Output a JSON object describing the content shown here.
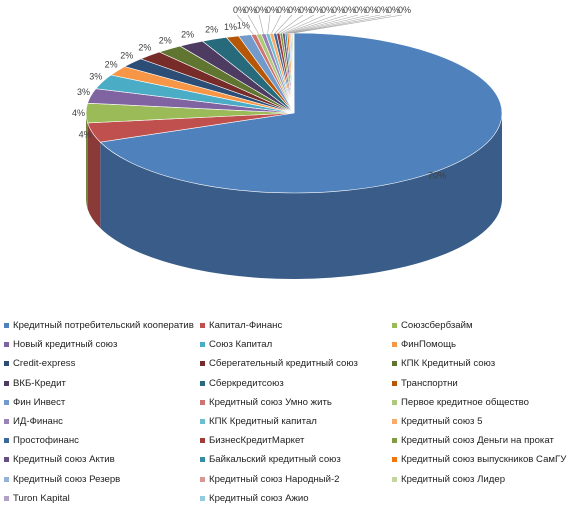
{
  "chart_data": {
    "type": "pie",
    "title": "",
    "series": [
      {
        "name": "Кредитный потребительский кооператив",
        "value": 70,
        "label": "70%",
        "color": "#4f81bd"
      },
      {
        "name": "Капитал-Финанс",
        "value": 4,
        "label": "4%",
        "color": "#c0504d"
      },
      {
        "name": "Союзсбербзайм",
        "value": 4,
        "label": "4%",
        "color": "#9bbb59"
      },
      {
        "name": "Новый кредитный союз",
        "value": 3,
        "label": "3%",
        "color": "#8064a2"
      },
      {
        "name": "Союз Капитал",
        "value": 3,
        "label": "3%",
        "color": "#4bacc6"
      },
      {
        "name": "ФинПомощь",
        "value": 2,
        "label": "2%",
        "color": "#f79646"
      },
      {
        "name": "Credit-express",
        "value": 2,
        "label": "2%",
        "color": "#2c4d75"
      },
      {
        "name": "Сберегательный кредитный союз",
        "value": 2,
        "label": "2%",
        "color": "#772c2a"
      },
      {
        "name": "КПК Кредитный союз",
        "value": 2,
        "label": "2%",
        "color": "#5f7530"
      },
      {
        "name": "ВКБ-Кредит",
        "value": 2,
        "label": "2%",
        "color": "#4d3b62"
      },
      {
        "name": "Сберкредитсоюз",
        "value": 2,
        "label": "2%",
        "color": "#276a7c"
      },
      {
        "name": "Транспортни",
        "value": 1,
        "label": "1%",
        "color": "#b65708"
      },
      {
        "name": "Фин Инвест",
        "value": 1,
        "label": "1%",
        "color": "#729aca"
      },
      {
        "name": "Кредитный союз Умно жить",
        "value": 0.4,
        "label": "0%",
        "color": "#cd7371"
      },
      {
        "name": "Первое кредитное общество",
        "value": 0.4,
        "label": "0%",
        "color": "#afc97a"
      },
      {
        "name": "ИД-Финанс",
        "value": 0.35,
        "label": "0%",
        "color": "#9983b5"
      },
      {
        "name": "КПК Кредитный капитал",
        "value": 0.3,
        "label": "0%",
        "color": "#6fbdd1"
      },
      {
        "name": "Кредитный союз 5",
        "value": 0.3,
        "label": "0%",
        "color": "#f9ab6b"
      },
      {
        "name": "Простофинанс",
        "value": 0.25,
        "label": "0%",
        "color": "#3a679c"
      },
      {
        "name": "БизнесКредитМаркет",
        "value": 0.25,
        "label": "0%",
        "color": "#9f3b38"
      },
      {
        "name": "Кредитный союз Деньги на прокат",
        "value": 0.2,
        "label": "0%",
        "color": "#7f9c40"
      },
      {
        "name": "Кредитный союз Актив",
        "value": 0.2,
        "label": "0%",
        "color": "#664f83"
      },
      {
        "name": "Байкальский кредитный союз",
        "value": 0.15,
        "label": "0%",
        "color": "#358ea6"
      },
      {
        "name": "Кредитный союз выпускников СамГУ",
        "value": 0.15,
        "label": "0%",
        "color": "#f3740b"
      },
      {
        "name": "Кредитный союз Резерв",
        "value": 0.1,
        "label": "0%",
        "color": "#95b3d7"
      },
      {
        "name": "Кредитный союз Народный-2",
        "value": 0.1,
        "label": "0%",
        "color": "#d99694"
      },
      {
        "name": "Кредитный союз Лидер",
        "value": 0.1,
        "label": "0%",
        "color": "#c3d69b"
      },
      {
        "name": "Turon Kapital",
        "value": 0.05,
        "label": "0%",
        "color": "#b2a1c7"
      },
      {
        "name": "Кредитный союз Ажио",
        "value": 0.05,
        "label": "0%",
        "color": "#93cddd"
      }
    ],
    "legend_position": "bottom"
  }
}
